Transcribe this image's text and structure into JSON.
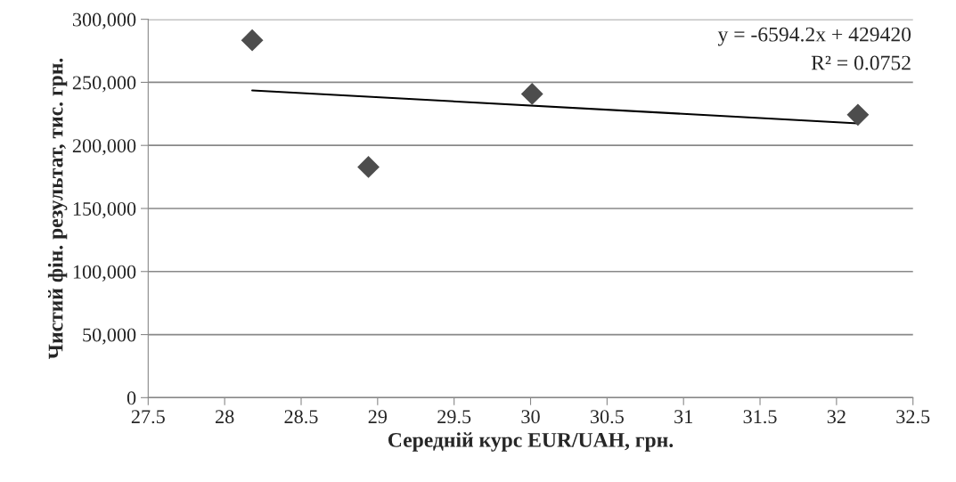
{
  "chart_data": {
    "type": "scatter",
    "xlabel": "Середній курс EUR/UAH, грн.",
    "ylabel": "Чистий фін. результат, тис. грн.",
    "series": [
      {
        "color": "#4d4d4d",
        "marker": "diamond",
        "x": [
          28.18,
          28.94,
          30.01,
          32.14
        ],
        "values": [
          283400,
          182900,
          240800,
          224300
        ]
      },
      {
        "type": "line",
        "color": "#000000",
        "marker": "none",
        "line_style": "solid",
        "x": [
          28.18,
          32.14
        ],
        "values": [
          243600,
          217500
        ]
      }
    ],
    "annotations": [
      "y = -6594.2x + 429420",
      "R² = 0.0752"
    ],
    "xlim": [
      27.5,
      32.5
    ],
    "xticks": [
      27.5,
      28,
      28.5,
      29,
      29.5,
      30,
      30.5,
      31,
      31.5,
      32,
      32.5
    ],
    "ylim": [
      0,
      300000
    ],
    "yticks": [
      0,
      {
        "value": 50000,
        "label": "50,000"
      },
      {
        "value": 100000,
        "label": "100,000"
      },
      {
        "value": 150000,
        "label": "150,000"
      },
      {
        "value": 200000,
        "label": "200,000"
      },
      {
        "value": 250000,
        "label": "250,000"
      },
      {
        "value": 300000,
        "label": "300,000"
      }
    ],
    "grid": "y",
    "legend": false
  }
}
